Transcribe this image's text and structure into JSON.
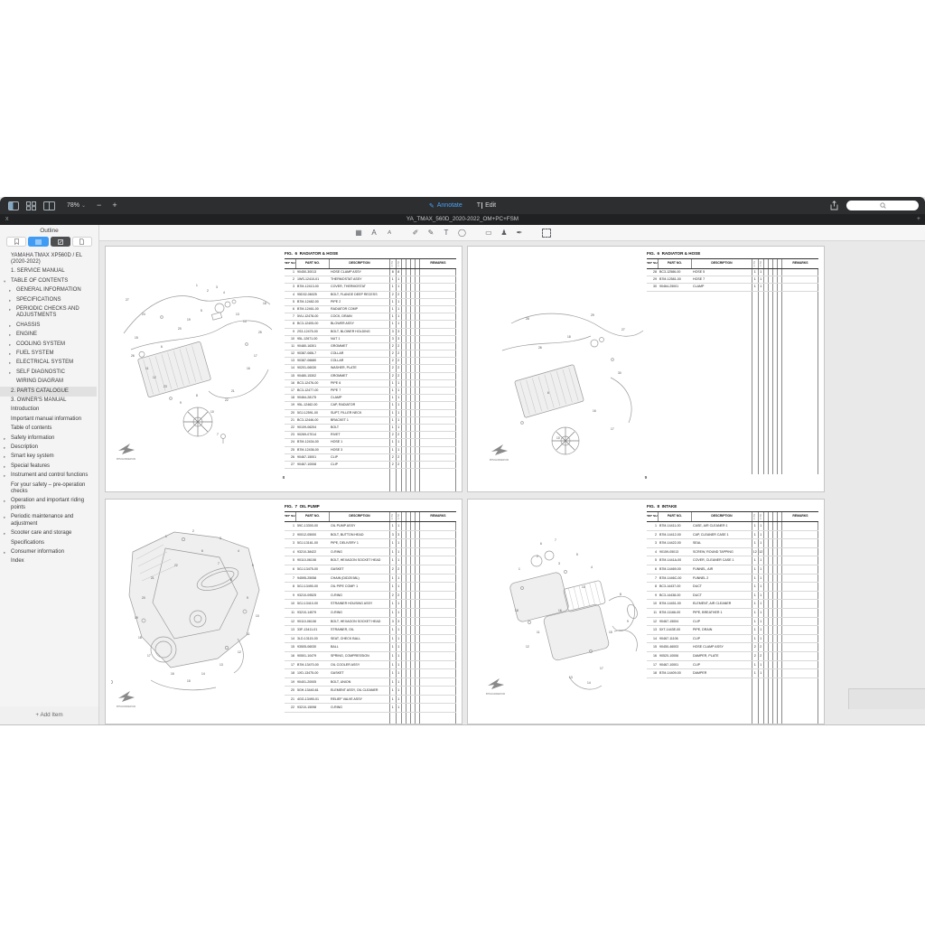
{
  "colors": {
    "accent": "#3f9bf4",
    "toolbar_bg": "#2c2e30",
    "tabbar_bg": "#1f2123",
    "sidebar_bg": "#f4f4f5",
    "content_bg": "#e9e9ea",
    "page_bg": "#ffffff"
  },
  "toolbar": {
    "zoom": "78%",
    "caret": "⌄",
    "minus": "−",
    "plus": "+"
  },
  "modes": {
    "annotate": "Annotate",
    "edit": "Edit",
    "annotate_glyph": "✎",
    "edit_glyph": "T"
  },
  "tabbar": {
    "close": "x",
    "title": "YA_TMAX_560D_2020-2022_OM+PC+FSM",
    "add": "+"
  },
  "sidebar": {
    "title": "Outline",
    "add_item": "+ Add Item",
    "items": [
      {
        "label": "YAMAHA TMAX XP560D / EL (2020-2022)",
        "indent": 0,
        "caret": ""
      },
      {
        "label": "1. SERVICE MANUAL",
        "indent": 0,
        "caret": ""
      },
      {
        "label": "TABLE OF CONTENTS",
        "indent": 0,
        "caret": "▾"
      },
      {
        "label": "GENERAL INFORMATION",
        "indent": 1,
        "caret": "▸"
      },
      {
        "label": "SPECIFICATIONS",
        "indent": 1,
        "caret": "▸"
      },
      {
        "label": "PERIODIC CHECKS AND ADJUSTMENTS",
        "indent": 1,
        "caret": "▸"
      },
      {
        "label": "CHASSIS",
        "indent": 1,
        "caret": "▸"
      },
      {
        "label": "ENGINE",
        "indent": 1,
        "caret": "▸"
      },
      {
        "label": "COOLING SYSTEM",
        "indent": 1,
        "caret": "▸"
      },
      {
        "label": "FUEL SYSTEM",
        "indent": 1,
        "caret": "▸"
      },
      {
        "label": "ELECTRICAL SYSTEM",
        "indent": 1,
        "caret": "▸"
      },
      {
        "label": "SELF DIAGNOSTIC",
        "indent": 1,
        "caret": "▸"
      },
      {
        "label": "WIRING DIAGRAM",
        "indent": 1,
        "caret": ""
      },
      {
        "label": "2. PARTS CATALOGUE",
        "indent": 0,
        "caret": "",
        "selected": true
      },
      {
        "label": "3. OWNER'S MANUAL",
        "indent": 0,
        "caret": ""
      },
      {
        "label": "Introduction",
        "indent": 0,
        "caret": ""
      },
      {
        "label": "Important manual information",
        "indent": 0,
        "caret": ""
      },
      {
        "label": "Table of contents",
        "indent": 0,
        "caret": ""
      },
      {
        "label": "Safety information",
        "indent": 0,
        "caret": "▸"
      },
      {
        "label": "Description",
        "indent": 0,
        "caret": "▸"
      },
      {
        "label": "Smart key system",
        "indent": 0,
        "caret": "▸"
      },
      {
        "label": "Special features",
        "indent": 0,
        "caret": "▸"
      },
      {
        "label": "Instrument and control functions",
        "indent": 0,
        "caret": "▸"
      },
      {
        "label": "For your safety – pre-operation checks",
        "indent": 0,
        "caret": ""
      },
      {
        "label": "Operation and important riding points",
        "indent": 0,
        "caret": "▸"
      },
      {
        "label": "Periodic maintenance and adjustment",
        "indent": 0,
        "caret": "▸"
      },
      {
        "label": "Scooter care and storage",
        "indent": 0,
        "caret": "▸"
      },
      {
        "label": "Specifications",
        "indent": 0,
        "caret": ""
      },
      {
        "label": "Consumer information",
        "indent": 0,
        "caret": "▸"
      },
      {
        "label": "Index",
        "indent": 0,
        "caret": ""
      }
    ]
  },
  "annot_icons": [
    {
      "name": "pixelate-icon",
      "glyph": "▦"
    },
    {
      "name": "text-style-large-icon",
      "glyph": "A"
    },
    {
      "name": "text-style-small-icon",
      "glyph": "A",
      "cls": "small-a"
    },
    {
      "name": "pencil-icon",
      "glyph": "✐",
      "cls": "gapL"
    },
    {
      "name": "highlighter-icon",
      "glyph": "✎"
    },
    {
      "name": "text-tool-icon",
      "glyph": "T"
    },
    {
      "name": "lasso-icon",
      "glyph": "◯"
    },
    {
      "name": "note-icon",
      "glyph": "▭",
      "cls": "gapL"
    },
    {
      "name": "stamp-icon",
      "glyph": "♟"
    },
    {
      "name": "signature-icon",
      "glyph": "✒"
    },
    {
      "name": "selection-icon",
      "glyph": "",
      "cls": "gapL selbox"
    }
  ],
  "table_headers": {
    "ref1": "REF.",
    "ref2": "NO.",
    "part": "PART NO.",
    "desc": "DESCRIPTION",
    "remarks": "REMARKS",
    "m1": "B7M1",
    "m2": "B7M2"
  },
  "pages": [
    {
      "fig_label": "FIG.  6  RADIATOR & HOSE",
      "page_number": "8",
      "code": "B7M12460E0V00",
      "rows": [
        [
          "1",
          "90450-30013",
          "HOSE CLAMP ASSY",
          "8",
          "8"
        ],
        [
          "2",
          "1WS-12410-01",
          "THERMOSTAT ASSY",
          "1",
          "1"
        ],
        [
          "3",
          "B7M-12413-00",
          "COVER, THERMOSTAT",
          "1",
          "1"
        ],
        [
          "4",
          "95D32-06025",
          "BOLT, FLANGE DEEP RECESS",
          "2",
          "2"
        ],
        [
          "5",
          "B7M-12482-00",
          "PIPE 2",
          "1",
          "1"
        ],
        [
          "6",
          "B7M-12461-00",
          "RADIATOR COMP",
          "1",
          "1"
        ],
        [
          "7",
          "5VU-12478-00",
          "COCK, DRAIN",
          "1",
          "1"
        ],
        [
          "8",
          "BC3-12405-00",
          "BLOWER ASSY",
          "1",
          "1"
        ],
        [
          "9",
          "2S3-12475-00",
          "BOLT, BLOWER HOLDING",
          "3",
          "3"
        ],
        [
          "10",
          "95L-12671-00",
          "NUT 1",
          "3",
          "3"
        ],
        [
          "11",
          "90480-16301",
          "GROMMET",
          "2",
          "2"
        ],
        [
          "12",
          "90387-065L7",
          "COLLAR",
          "2",
          "2"
        ],
        [
          "13",
          "90387-06680",
          "COLLAR",
          "2",
          "2"
        ],
        [
          "14",
          "90201-06030",
          "WASHER, PLATE",
          "2",
          "2"
        ],
        [
          "15",
          "90480-15302",
          "GROMMET",
          "2",
          "2"
        ],
        [
          "16",
          "BC3-12476-00",
          "PIPE 6",
          "1",
          "1"
        ],
        [
          "17",
          "BC3-12477-00",
          "PIPE 7",
          "1",
          "1"
        ],
        [
          "18",
          "90464-28175",
          "CLAMP",
          "1",
          "1"
        ],
        [
          "19",
          "95L-12462-00",
          "CAP, RADIATOR",
          "1",
          "1"
        ],
        [
          "20",
          "5GJ-12591-00",
          "SUPT, FILLER NECK",
          "1",
          "1"
        ],
        [
          "21",
          "BC3-12446-00",
          "BRACKET 1",
          "1",
          "1"
        ],
        [
          "22",
          "90109-06204",
          "BOLT",
          "1",
          "1"
        ],
        [
          "23",
          "90269-07014",
          "RIVET",
          "2",
          "2"
        ],
        [
          "24",
          "B7M-12434-00",
          "HOSE 1",
          "1",
          "1"
        ],
        [
          "25",
          "B7M-12436-00",
          "HOSE 3",
          "1",
          "1"
        ],
        [
          "26",
          "90467-15001",
          "CLIP",
          "2",
          "2"
        ],
        [
          "27",
          "90467-10008",
          "CLIP",
          "2",
          "2"
        ]
      ],
      "callouts": [
        [
          27,
          16,
          42
        ],
        [
          24,
          34,
          58
        ],
        [
          15,
          26,
          84
        ],
        [
          26,
          22,
          104
        ],
        [
          11,
          38,
          118
        ],
        [
          12,
          46,
          128
        ],
        [
          23,
          58,
          138
        ],
        [
          6,
          55,
          94
        ],
        [
          19,
          84,
          64
        ],
        [
          20,
          74,
          74
        ],
        [
          1,
          94,
          26
        ],
        [
          2,
          106,
          32
        ],
        [
          3,
          116,
          28
        ],
        [
          4,
          124,
          34
        ],
        [
          5,
          99,
          54
        ],
        [
          13,
          138,
          58
        ],
        [
          14,
          146,
          66
        ],
        [
          18,
          168,
          46
        ],
        [
          25,
          163,
          78
        ],
        [
          17,
          158,
          104
        ],
        [
          16,
          150,
          118
        ],
        [
          21,
          133,
          143
        ],
        [
          22,
          126,
          153
        ],
        [
          8,
          94,
          148
        ],
        [
          9,
          76,
          156
        ],
        [
          10,
          110,
          166
        ],
        [
          7,
          117,
          191
        ]
      ]
    },
    {
      "fig_label": "FIG.  6  RADIATOR & HOSE",
      "page_number": "9",
      "code": "B7M12460E0V00",
      "rows": [
        [
          "28",
          "BC3-12586-00",
          "HOSE 5",
          "1",
          "1"
        ],
        [
          "29",
          "B7M-12581-00",
          "HOSE 7",
          "1",
          "1"
        ],
        [
          "30",
          "90464-25001",
          "CLAMP",
          "1",
          "1"
        ]
      ],
      "callouts": [
        [
          28,
          44,
          26
        ],
        [
          29,
          116,
          22
        ],
        [
          27,
          150,
          38
        ],
        [
          30,
          146,
          86
        ],
        [
          26,
          58,
          58
        ],
        [
          18,
          90,
          46
        ],
        [
          6,
          68,
          108
        ],
        [
          16,
          118,
          128
        ],
        [
          17,
          138,
          148
        ],
        [
          10,
          78,
          158
        ]
      ]
    },
    {
      "fig_label": "FIG.  7  OIL PUMP",
      "page_number": "",
      "code": "B7M13300E0V00",
      "rows": [
        [
          "1",
          "59C-13300-00",
          "OIL PUMP ASSY",
          "1",
          "1"
        ],
        [
          "2",
          "90012-05000",
          "BOLT, BUTTON HEAD",
          "3",
          "3"
        ],
        [
          "3",
          "5GJ-13161-00",
          "PIPE, DELIVERY 1",
          "1",
          "1"
        ],
        [
          "4",
          "93210-38422",
          "O-RING",
          "1",
          "1"
        ],
        [
          "5",
          "90110-06108",
          "BOLT, HEXAGON SOCKET HEAD",
          "1",
          "1"
        ],
        [
          "6",
          "5GJ-13475-00",
          "GASKET",
          "2",
          "2"
        ],
        [
          "7",
          "94595-25058",
          "CHAIN (DID25 58L)",
          "1",
          "1"
        ],
        [
          "8",
          "5GJ-13490-00",
          "OIL PIPE COMP. 1",
          "1",
          "1"
        ],
        [
          "9",
          "93210-09525",
          "O-RING",
          "2",
          "2"
        ],
        [
          "10",
          "5GJ-13410-00",
          "STRAINER HOUSING ASSY",
          "1",
          "1"
        ],
        [
          "11",
          "93210-14579",
          "O-RING",
          "1",
          "1"
        ],
        [
          "12",
          "90110-06108",
          "BOLT, HEXAGON SOCKET HEAD",
          "3",
          "3"
        ],
        [
          "13",
          "33F-13411-01",
          "STRAINER, OIL",
          "1",
          "1"
        ],
        [
          "14",
          "3LD-13115-00",
          "SEAT, CHECK BALL",
          "1",
          "1"
        ],
        [
          "15",
          "93505-06030",
          "BALL",
          "1",
          "1"
        ],
        [
          "16",
          "90501-10479",
          "SPRING, COMPRESSION",
          "1",
          "1"
        ],
        [
          "17",
          "B7M-13470-00",
          "OIL COOLER ASSY",
          "1",
          "1"
        ],
        [
          "18",
          "1XD-13475-00",
          "GASKET",
          "1",
          "1"
        ],
        [
          "19",
          "90401-20005",
          "BOLT, UNION",
          "1",
          "1"
        ],
        [
          "20",
          "5GH-13440-61",
          "ELEMENT ASSY, OIL CLEANER",
          "1",
          "1"
        ],
        [
          "21",
          "4GG-13490-01",
          "RELIEF VALVE ASSY",
          "1",
          "1"
        ],
        [
          "22",
          "93210-15098",
          "O-RING",
          "1",
          "1"
        ]
      ],
      "callouts": [
        [
          1,
          60,
          28
        ],
        [
          2,
          90,
          22
        ],
        [
          3,
          120,
          30
        ],
        [
          4,
          140,
          44
        ],
        [
          5,
          156,
          60
        ],
        [
          7,
          118,
          58
        ],
        [
          8,
          132,
          76
        ],
        [
          6,
          100,
          44
        ],
        [
          9,
          150,
          96
        ],
        [
          10,
          160,
          116
        ],
        [
          11,
          150,
          136
        ],
        [
          12,
          140,
          156
        ],
        [
          13,
          120,
          170
        ],
        [
          14,
          100,
          180
        ],
        [
          15,
          84,
          188
        ],
        [
          16,
          66,
          180
        ],
        [
          17,
          40,
          160
        ],
        [
          18,
          30,
          140
        ],
        [
          19,
          26,
          118
        ],
        [
          20,
          34,
          96
        ],
        [
          21,
          44,
          74
        ],
        [
          22,
          70,
          60
        ]
      ]
    },
    {
      "fig_label": "FIG.  8  INTAKE",
      "page_number": "",
      "code": "B7M14400E0V00",
      "rows": [
        [
          "1",
          "B7M-14411-00",
          "CASE, AIR CLEANER 1",
          "1",
          "1"
        ],
        [
          "2",
          "B7M-14412-00",
          "CAP, CLEANER CASE 1",
          "1",
          "1"
        ],
        [
          "3",
          "B7M-14422-00",
          "SEAL",
          "1",
          "1"
        ],
        [
          "4",
          "90159-05013",
          "SCREW, ROUND TAPPING",
          "12",
          "12"
        ],
        [
          "5",
          "B7M-1441A-00",
          "COVER, CLEANER CASE 1",
          "1",
          "1"
        ],
        [
          "6",
          "B7M-14469-00",
          "FUNNEL, AIR",
          "1",
          "1"
        ],
        [
          "7",
          "B7M-1446C-00",
          "FUNNEL 2",
          "1",
          "1"
        ],
        [
          "8",
          "BC3-14437-00",
          "DUCT",
          "1",
          "1"
        ],
        [
          "9",
          "BC3-14438-00",
          "DUCT",
          "1",
          "1"
        ],
        [
          "10",
          "B7M-14451-00",
          "ELEMENT, AIR CLEANER",
          "1",
          "1"
        ],
        [
          "11",
          "B7M-11166-00",
          "PIPE, BREATHER 1",
          "1",
          "1"
        ],
        [
          "12",
          "90467-15004",
          "CLIP",
          "1",
          "1"
        ],
        [
          "13",
          "5XT-1443E-00",
          "PIPE, DRAIN",
          "1",
          "1"
        ],
        [
          "14",
          "90467-11106",
          "CLIP",
          "1",
          "1"
        ],
        [
          "15",
          "90450-46003",
          "HOSE CLAMP ASSY",
          "2",
          "2"
        ],
        [
          "16",
          "90520-10006",
          "DAMPER, PLATE",
          "2",
          "2"
        ],
        [
          "17",
          "90467-10001",
          "CLIP",
          "1",
          "1"
        ],
        [
          "18",
          "B7M-14409-00",
          "DAMPER",
          "1",
          "1"
        ]
      ],
      "callouts": [
        [
          1,
          40,
          50
        ],
        [
          2,
          60,
          36
        ],
        [
          3,
          84,
          44
        ],
        [
          5,
          104,
          34
        ],
        [
          6,
          64,
          22
        ],
        [
          7,
          80,
          18
        ],
        [
          4,
          120,
          48
        ],
        [
          10,
          110,
          70
        ],
        [
          8,
          152,
          78
        ],
        [
          9,
          160,
          108
        ],
        [
          11,
          60,
          120
        ],
        [
          12,
          48,
          136
        ],
        [
          13,
          96,
          170
        ],
        [
          14,
          116,
          176
        ],
        [
          15,
          140,
          120
        ],
        [
          16,
          84,
          96
        ],
        [
          17,
          130,
          160
        ],
        [
          18,
          36,
          96
        ]
      ]
    }
  ]
}
